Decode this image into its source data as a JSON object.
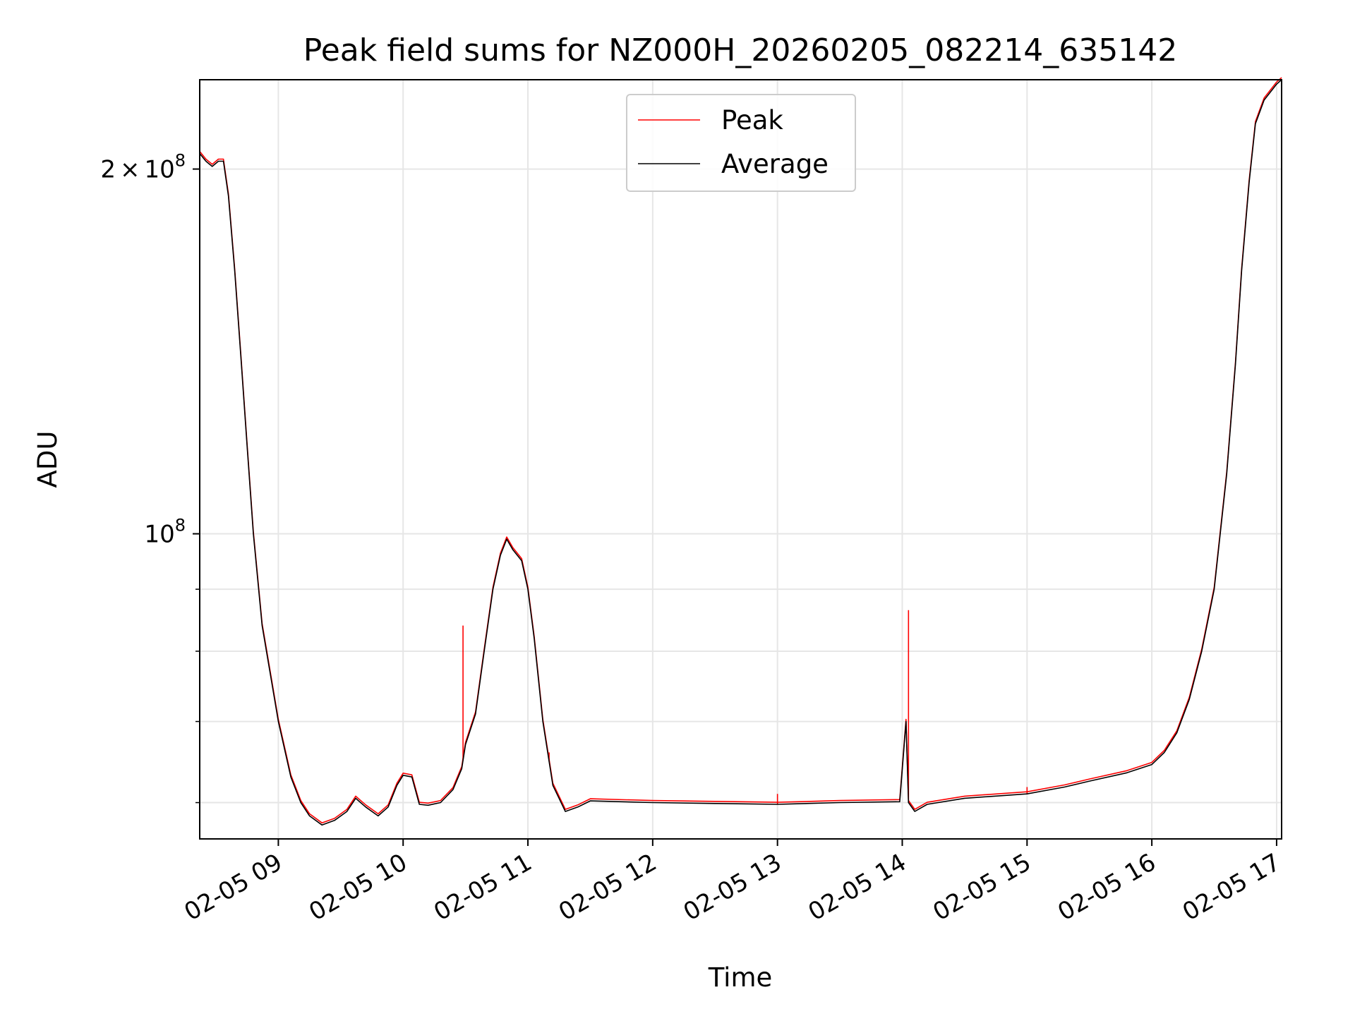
{
  "chart_data": {
    "type": "line",
    "title": "Peak field sums for NZ000H_20260205_082214_635142",
    "xlabel": "Time",
    "ylabel": "ADU",
    "yscale": "log",
    "x_unit": "hours",
    "xlim": [
      8.37,
      17.04
    ],
    "ylim": [
      56000000,
      237000000
    ],
    "x_ticks": [
      {
        "value": 9,
        "label": "02-05 09"
      },
      {
        "value": 10,
        "label": "02-05 10"
      },
      {
        "value": 11,
        "label": "02-05 11"
      },
      {
        "value": 12,
        "label": "02-05 12"
      },
      {
        "value": 13,
        "label": "02-05 13"
      },
      {
        "value": 14,
        "label": "02-05 14"
      },
      {
        "value": 15,
        "label": "02-05 15"
      },
      {
        "value": 16,
        "label": "02-05 16"
      },
      {
        "value": 17,
        "label": "02-05 17"
      }
    ],
    "y_major_ticks": [
      {
        "value": 100000000,
        "base": "10",
        "exp": "8",
        "mult": ""
      },
      {
        "value": 200000000,
        "base": "10",
        "exp": "8",
        "mult": "2"
      }
    ],
    "y_minor_ticks": [
      60000000,
      70000000,
      80000000,
      90000000
    ],
    "grid": true,
    "legend_position": "upper-center",
    "series": [
      {
        "name": "Average",
        "color": "#000000",
        "points": [
          [
            8.37,
            206000000
          ],
          [
            8.42,
            203000000
          ],
          [
            8.47,
            201000000
          ],
          [
            8.52,
            203000000
          ],
          [
            8.56,
            203000000
          ],
          [
            8.6,
            190000000
          ],
          [
            8.65,
            165000000
          ],
          [
            8.7,
            140000000
          ],
          [
            8.75,
            118000000
          ],
          [
            8.8,
            100000000
          ],
          [
            8.87,
            84000000
          ],
          [
            9.0,
            70000000
          ],
          [
            9.1,
            63000000
          ],
          [
            9.18,
            60000000
          ],
          [
            9.25,
            58500000
          ],
          [
            9.35,
            57500000
          ],
          [
            9.45,
            58000000
          ],
          [
            9.55,
            59000000
          ],
          [
            9.62,
            60500000
          ],
          [
            9.7,
            59500000
          ],
          [
            9.8,
            58500000
          ],
          [
            9.88,
            59500000
          ],
          [
            9.95,
            62000000
          ],
          [
            10.0,
            63200000
          ],
          [
            10.07,
            63000000
          ],
          [
            10.13,
            59800000
          ],
          [
            10.2,
            59700000
          ],
          [
            10.3,
            60000000
          ],
          [
            10.4,
            61500000
          ],
          [
            10.47,
            64000000
          ],
          [
            10.5,
            67000000
          ],
          [
            10.58,
            71000000
          ],
          [
            10.65,
            80000000
          ],
          [
            10.72,
            90000000
          ],
          [
            10.78,
            96000000
          ],
          [
            10.83,
            99000000
          ],
          [
            10.88,
            97000000
          ],
          [
            10.95,
            95000000
          ],
          [
            11.0,
            90000000
          ],
          [
            11.05,
            82000000
          ],
          [
            11.12,
            70000000
          ],
          [
            11.2,
            62000000
          ],
          [
            11.3,
            59000000
          ],
          [
            11.4,
            59500000
          ],
          [
            11.5,
            60200000
          ],
          [
            12.0,
            60000000
          ],
          [
            12.5,
            59900000
          ],
          [
            13.0,
            59800000
          ],
          [
            13.5,
            60000000
          ],
          [
            13.98,
            60100000
          ],
          [
            14.03,
            70000000
          ],
          [
            14.05,
            60000000
          ],
          [
            14.1,
            59000000
          ],
          [
            14.2,
            59800000
          ],
          [
            14.5,
            60500000
          ],
          [
            15.0,
            61000000
          ],
          [
            15.3,
            61800000
          ],
          [
            15.5,
            62500000
          ],
          [
            15.8,
            63500000
          ],
          [
            16.0,
            64500000
          ],
          [
            16.1,
            66000000
          ],
          [
            16.2,
            68500000
          ],
          [
            16.3,
            73000000
          ],
          [
            16.4,
            80000000
          ],
          [
            16.5,
            90000000
          ],
          [
            16.6,
            112000000
          ],
          [
            16.67,
            138000000
          ],
          [
            16.72,
            165000000
          ],
          [
            16.78,
            195000000
          ],
          [
            16.83,
            218000000
          ],
          [
            16.9,
            228000000
          ],
          [
            17.0,
            235000000
          ],
          [
            17.04,
            237000000
          ]
        ]
      },
      {
        "name": "Peak",
        "color": "#ff0000",
        "spikes": [
          {
            "x": 10.48,
            "y": 84000000
          },
          {
            "x": 11.17,
            "y": 66000000
          },
          {
            "x": 13.0,
            "y": 61000000
          },
          {
            "x": 14.05,
            "y": 86500000
          },
          {
            "x": 15.0,
            "y": 61800000
          }
        ]
      }
    ]
  }
}
